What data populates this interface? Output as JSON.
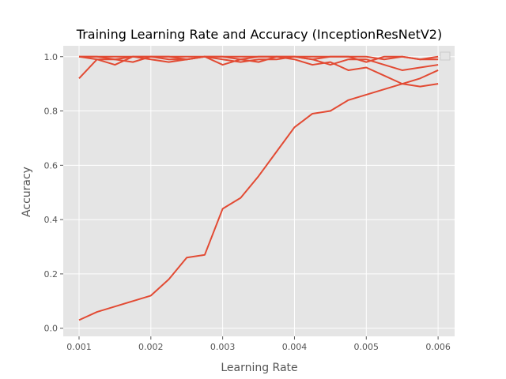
{
  "chart_data": {
    "type": "line",
    "title": "Training Learning Rate and Accuracy (InceptionResNetV2)",
    "xlabel": "Learning Rate",
    "ylabel": "Accuracy",
    "xlim": [
      0.00078,
      0.00623
    ],
    "ylim": [
      -0.03,
      1.04
    ],
    "xticks": [
      0.001,
      0.002,
      0.003,
      0.004,
      0.005,
      0.006
    ],
    "xtick_labels": [
      "0.001",
      "0.002",
      "0.003",
      "0.004",
      "0.005",
      "0.006"
    ],
    "yticks": [
      0.0,
      0.2,
      0.4,
      0.6,
      0.8,
      1.0
    ],
    "ytick_labels": [
      "0.0",
      "0.2",
      "0.4",
      "0.6",
      "0.8",
      "1.0"
    ],
    "grid": true,
    "legend": "top-right",
    "style": {
      "background": "#e5e5e5",
      "grid_color": "#ffffff",
      "line_color": "#e24a33"
    },
    "series": [
      {
        "x": [
          0.001,
          0.00125,
          0.0015,
          0.00175,
          0.002,
          0.00225,
          0.0025,
          0.00275,
          0.003,
          0.00325,
          0.0035,
          0.00375,
          0.004,
          0.00425,
          0.0045,
          0.00475,
          0.005,
          0.00525,
          0.0055,
          0.00575,
          0.006
        ],
        "values": [
          0.03,
          0.06,
          0.08,
          0.1,
          0.12,
          0.18,
          0.26,
          0.27,
          0.44,
          0.48,
          0.56,
          0.65,
          0.74,
          0.79,
          0.8,
          0.84,
          0.86,
          0.88,
          0.9,
          0.92,
          0.95
        ]
      },
      {
        "x": [
          0.001,
          0.00125,
          0.0015,
          0.00175,
          0.002,
          0.00225,
          0.0025,
          0.00275,
          0.003,
          0.00325,
          0.0035,
          0.00375,
          0.004,
          0.00425,
          0.0045,
          0.00475,
          0.005,
          0.00525,
          0.0055,
          0.00575,
          0.006
        ],
        "values": [
          0.92,
          0.99,
          0.97,
          1.0,
          0.99,
          0.98,
          0.99,
          1.0,
          0.97,
          0.99,
          0.98,
          1.0,
          0.99,
          0.97,
          0.98,
          0.95,
          0.96,
          0.93,
          0.9,
          0.89,
          0.9
        ]
      },
      {
        "x": [
          0.001,
          0.00125,
          0.0015,
          0.00175,
          0.002,
          0.00225,
          0.0025,
          0.00275,
          0.003,
          0.00325,
          0.0035,
          0.00375,
          0.004,
          0.00425,
          0.0045,
          0.00475,
          0.005,
          0.00525,
          0.0055,
          0.00575,
          0.006
        ],
        "values": [
          1.0,
          0.99,
          0.99,
          0.98,
          1.0,
          0.99,
          0.99,
          1.0,
          0.99,
          0.98,
          0.99,
          0.99,
          1.0,
          0.99,
          0.97,
          0.99,
          0.99,
          0.97,
          0.95,
          0.96,
          0.97
        ]
      },
      {
        "x": [
          0.001,
          0.00125,
          0.0015,
          0.00175,
          0.002,
          0.00225,
          0.0025,
          0.00275,
          0.003,
          0.00325,
          0.0035,
          0.00375,
          0.004,
          0.00425,
          0.0045,
          0.00475,
          0.005,
          0.00525,
          0.0055,
          0.00575,
          0.006
        ],
        "values": [
          1.0,
          1.0,
          1.0,
          1.0,
          1.0,
          1.0,
          1.0,
          1.0,
          1.0,
          1.0,
          1.0,
          1.0,
          1.0,
          1.0,
          1.0,
          1.0,
          1.0,
          0.99,
          1.0,
          0.99,
          1.0
        ]
      },
      {
        "x": [
          0.001,
          0.00125,
          0.0015,
          0.00175,
          0.002,
          0.00225,
          0.0025,
          0.00275,
          0.003,
          0.00325,
          0.0035,
          0.00375,
          0.004,
          0.00425,
          0.0045,
          0.00475,
          0.005,
          0.00525,
          0.0055,
          0.00575,
          0.006
        ],
        "values": [
          1.0,
          1.0,
          0.99,
          1.0,
          1.0,
          1.0,
          0.99,
          1.0,
          1.0,
          0.99,
          1.0,
          1.0,
          1.0,
          0.99,
          1.0,
          1.0,
          0.98,
          1.0,
          1.0,
          0.99,
          0.99
        ]
      }
    ]
  }
}
